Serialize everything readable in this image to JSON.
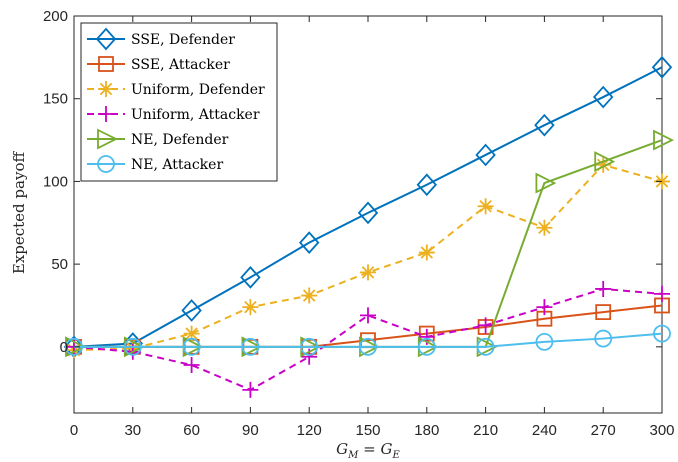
{
  "chart_data": {
    "type": "line",
    "title": "",
    "xlabel": "G_M = G_E",
    "ylabel": "Expected payoff",
    "x": [
      0,
      30,
      60,
      90,
      120,
      150,
      180,
      210,
      240,
      270,
      300
    ],
    "xlim": [
      0,
      300
    ],
    "ylim": [
      -40,
      200
    ],
    "xticks": [
      "0",
      "30",
      "60",
      "90",
      "120",
      "150",
      "180",
      "210",
      "240",
      "270",
      "300"
    ],
    "yticks": [
      "0",
      "50",
      "100",
      "150",
      "200"
    ],
    "grid": false,
    "legend_position": "top-left",
    "series": [
      {
        "name": "SSE, Defender",
        "color": "#0072BD",
        "marker": "diamond",
        "dash": "solid",
        "values": [
          0,
          2,
          22,
          42,
          63,
          81,
          98,
          116,
          134,
          151,
          169
        ]
      },
      {
        "name": "SSE, Attacker",
        "color": "#D95319",
        "marker": "square",
        "dash": "solid",
        "values": [
          0,
          0,
          0,
          0,
          0,
          4,
          8,
          12,
          17,
          21,
          25
        ]
      },
      {
        "name": "Uniform, Defender",
        "color": "#EDB120",
        "marker": "asterisk",
        "dash": "dashed",
        "values": [
          -2,
          -1,
          8,
          24,
          31,
          45,
          57,
          85,
          72,
          110,
          100
        ]
      },
      {
        "name": "Uniform, Attacker",
        "color": "#C800C8",
        "marker": "plus",
        "dash": "dashed",
        "values": [
          0,
          -3,
          -11,
          -26,
          -6,
          19,
          6,
          13,
          24,
          35,
          32
        ]
      },
      {
        "name": "NE, Defender",
        "color": "#77AC30",
        "marker": "triangle-right",
        "dash": "solid",
        "values": [
          0,
          0,
          0,
          0,
          0,
          0,
          0,
          0,
          99,
          112,
          125
        ]
      },
      {
        "name": "NE, Attacker",
        "color": "#4DBEEE",
        "marker": "circle",
        "dash": "solid",
        "values": [
          0,
          0,
          0,
          0,
          0,
          0,
          0,
          0,
          3,
          5,
          8
        ]
      }
    ]
  }
}
